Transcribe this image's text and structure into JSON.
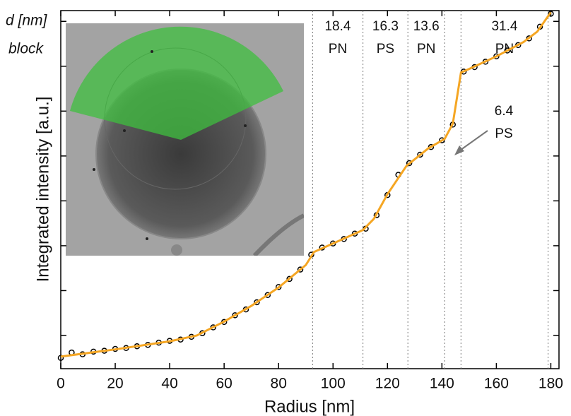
{
  "chart_data": {
    "type": "scatter",
    "x_label": "Radius [nm]",
    "y_label": "Integrated intensity [a.u.]",
    "corner_label_top": "d [nm]",
    "corner_label_bottom": "block",
    "xlim": [
      0,
      183
    ],
    "xticks": [
      0,
      20,
      40,
      60,
      80,
      100,
      120,
      140,
      160,
      180
    ],
    "ylim": [
      0.26,
      8.24
    ],
    "yticks": [
      1,
      2,
      3,
      4,
      5,
      6,
      7,
      8
    ],
    "scatter": {
      "color": "#000000",
      "x": [
        0,
        4,
        8,
        12,
        16,
        20,
        24,
        28,
        32,
        36,
        40,
        44,
        48,
        52,
        56,
        60,
        64,
        68,
        72,
        76,
        80,
        84,
        88,
        92,
        96,
        100,
        104,
        108,
        112,
        116,
        120,
        124,
        128,
        132,
        136,
        140,
        144,
        148,
        152,
        156,
        160,
        164,
        168,
        172,
        176,
        180
      ],
      "values": [
        0.5,
        0.62,
        0.58,
        0.64,
        0.66,
        0.7,
        0.72,
        0.76,
        0.79,
        0.84,
        0.88,
        0.91,
        0.97,
        1.05,
        1.18,
        1.3,
        1.45,
        1.58,
        1.74,
        1.9,
        2.08,
        2.26,
        2.47,
        2.8,
        2.96,
        3.05,
        3.15,
        3.27,
        3.38,
        3.68,
        4.13,
        4.58,
        4.84,
        5.03,
        5.2,
        5.35,
        5.7,
        6.88,
        6.98,
        7.1,
        7.22,
        7.35,
        7.47,
        7.62,
        7.88,
        8.17
      ]
    },
    "fit": {
      "color": "#f5a623",
      "x": [
        0,
        20,
        40,
        50,
        60,
        70,
        80,
        90,
        93,
        100,
        111,
        115,
        120,
        127,
        135,
        141,
        144,
        147,
        150,
        160,
        170,
        175,
        180
      ],
      "values": [
        0.53,
        0.69,
        0.87,
        1.0,
        1.31,
        1.66,
        2.07,
        2.57,
        2.86,
        3.05,
        3.35,
        3.6,
        4.15,
        4.78,
        5.17,
        5.38,
        5.72,
        6.86,
        6.94,
        7.22,
        7.54,
        7.77,
        8.2
      ]
    },
    "boundaries": [
      92.5,
      111,
      127.5,
      141,
      147,
      179
    ],
    "segments": [
      {
        "width": "18.4",
        "block": "PN"
      },
      {
        "width": "16.3",
        "block": "PS"
      },
      {
        "width": "13.6",
        "block": "PN"
      },
      {
        "width": "6.4",
        "block": "PS"
      },
      {
        "width": "31.4",
        "block": "PN"
      }
    ]
  }
}
